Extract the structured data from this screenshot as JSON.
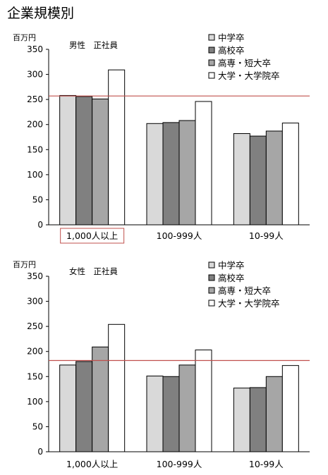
{
  "title": "企業規模別",
  "colors": {
    "series": [
      "#d9d9d9",
      "#808080",
      "#a6a6a6",
      "#ffffff"
    ],
    "bar_stroke": "#000000",
    "reference_line": "#c0504d",
    "highlight_box": "#c0504d"
  },
  "chart_data": [
    {
      "type": "bar",
      "title": "男性　正社員",
      "unit_label": "百万円",
      "categories": [
        "1,000人以上",
        "100-999人",
        "10-99人"
      ],
      "highlighted_category": "1,000人以上",
      "series": [
        {
          "name": "中学卒",
          "values": [
            258,
            202,
            182
          ]
        },
        {
          "name": "高校卒",
          "values": [
            256,
            204,
            177
          ]
        },
        {
          "name": "高専・短大卒",
          "values": [
            251,
            208,
            187
          ]
        },
        {
          "name": "大学・大学院卒",
          "values": [
            309,
            246,
            203
          ]
        }
      ],
      "reference_line": 257,
      "ylim": [
        0,
        350
      ],
      "yticks": [
        0,
        50,
        100,
        150,
        200,
        250,
        300,
        350
      ],
      "legend_position": "top-right",
      "grid": false
    },
    {
      "type": "bar",
      "title": "女性　正社員",
      "unit_label": "百万円",
      "categories": [
        "1,000人以上",
        "100-999人",
        "10-99人"
      ],
      "series": [
        {
          "name": "中学卒",
          "values": [
            173,
            151,
            127
          ]
        },
        {
          "name": "高校卒",
          "values": [
            180,
            150,
            128
          ]
        },
        {
          "name": "高専・短大卒",
          "values": [
            209,
            173,
            150
          ]
        },
        {
          "name": "大学・大学院卒",
          "values": [
            254,
            203,
            172
          ]
        }
      ],
      "reference_line": 182,
      "ylim": [
        0,
        350
      ],
      "yticks": [
        0,
        50,
        100,
        150,
        200,
        250,
        300,
        350
      ],
      "legend_position": "top-right",
      "grid": false
    }
  ]
}
